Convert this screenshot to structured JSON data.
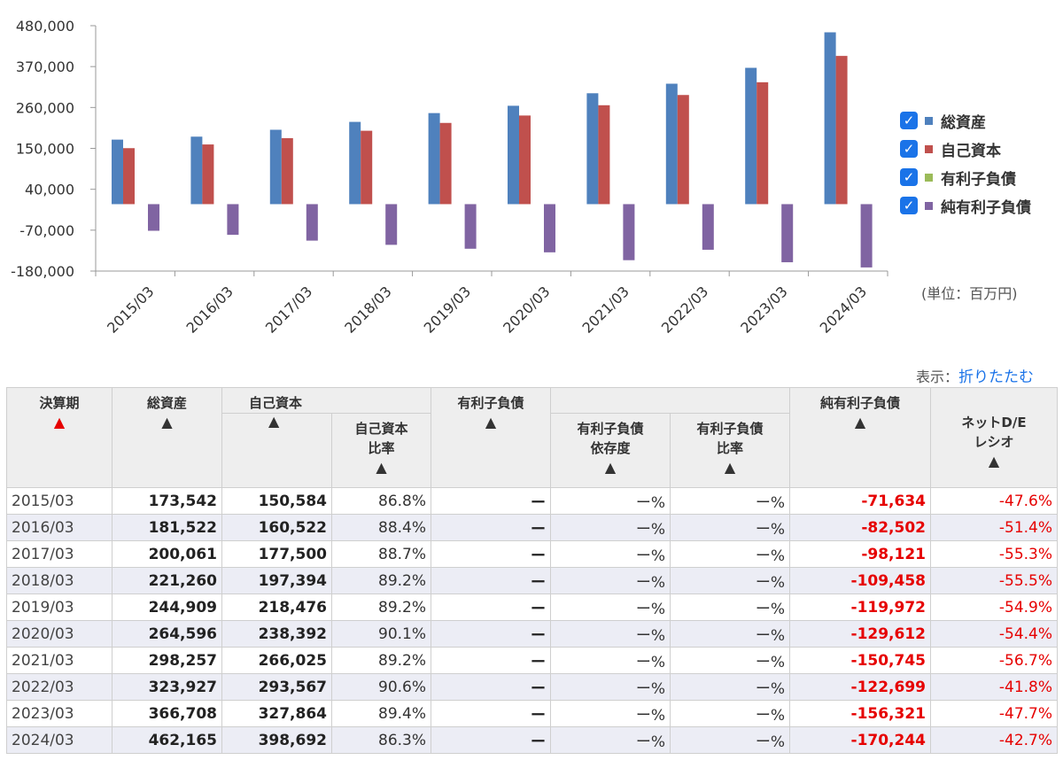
{
  "chart_data": {
    "type": "bar",
    "categories": [
      "2015/03",
      "2016/03",
      "2017/03",
      "2018/03",
      "2019/03",
      "2020/03",
      "2021/03",
      "2022/03",
      "2023/03",
      "2024/03"
    ],
    "series": [
      {
        "name": "総資産",
        "color": "#4f81bd",
        "values": [
          173542,
          181522,
          200061,
          221260,
          244909,
          264596,
          298257,
          323927,
          366708,
          462165
        ]
      },
      {
        "name": "自己資本",
        "color": "#c0504d",
        "values": [
          150584,
          160522,
          177500,
          197394,
          218476,
          238392,
          266025,
          293567,
          327864,
          398692
        ]
      },
      {
        "name": "有利子負債",
        "color": "#9bbb59",
        "values": [
          null,
          null,
          null,
          null,
          null,
          null,
          null,
          null,
          null,
          null
        ]
      },
      {
        "name": "純有利子負債",
        "color": "#8064a2",
        "values": [
          -71634,
          -82502,
          -98121,
          -109458,
          -119972,
          -129612,
          -150745,
          -122699,
          -156321,
          -170244
        ]
      }
    ],
    "yticks": [
      "480,000",
      "370,000",
      "260,000",
      "150,000",
      "40,000",
      "-70,000",
      "-180,000"
    ],
    "ylim": [
      -180000,
      480000
    ],
    "grid": false,
    "legend_position": "right"
  },
  "unit_label": "(単位：百万円)",
  "display_toggle": {
    "label": "表示：",
    "link": "折りたたむ"
  },
  "table": {
    "headers": {
      "period": "決算期",
      "total_assets": "総資産",
      "equity": "自己資本",
      "equity_ratio_1": "自己資本",
      "equity_ratio_2": "比率",
      "debt": "有利子負債",
      "debt_dep_1": "有利子負債",
      "debt_dep_2": "依存度",
      "debt_ratio_1": "有利子負債",
      "debt_ratio_2": "比率",
      "net_debt": "純有利子負債",
      "net_de_1": "ネットD/E",
      "net_de_2": "レシオ",
      "sort_icon": "▲"
    },
    "rows": [
      {
        "period": "2015/03",
        "total_assets": "173,542",
        "equity": "150,584",
        "equity_ratio": "86.8%",
        "debt": "ー",
        "debt_dep": "ー%",
        "debt_ratio": "ー%",
        "net_debt": "-71,634",
        "net_de": "-47.6%"
      },
      {
        "period": "2016/03",
        "total_assets": "181,522",
        "equity": "160,522",
        "equity_ratio": "88.4%",
        "debt": "ー",
        "debt_dep": "ー%",
        "debt_ratio": "ー%",
        "net_debt": "-82,502",
        "net_de": "-51.4%"
      },
      {
        "period": "2017/03",
        "total_assets": "200,061",
        "equity": "177,500",
        "equity_ratio": "88.7%",
        "debt": "ー",
        "debt_dep": "ー%",
        "debt_ratio": "ー%",
        "net_debt": "-98,121",
        "net_de": "-55.3%"
      },
      {
        "period": "2018/03",
        "total_assets": "221,260",
        "equity": "197,394",
        "equity_ratio": "89.2%",
        "debt": "ー",
        "debt_dep": "ー%",
        "debt_ratio": "ー%",
        "net_debt": "-109,458",
        "net_de": "-55.5%"
      },
      {
        "period": "2019/03",
        "total_assets": "244,909",
        "equity": "218,476",
        "equity_ratio": "89.2%",
        "debt": "ー",
        "debt_dep": "ー%",
        "debt_ratio": "ー%",
        "net_debt": "-119,972",
        "net_de": "-54.9%"
      },
      {
        "period": "2020/03",
        "total_assets": "264,596",
        "equity": "238,392",
        "equity_ratio": "90.1%",
        "debt": "ー",
        "debt_dep": "ー%",
        "debt_ratio": "ー%",
        "net_debt": "-129,612",
        "net_de": "-54.4%"
      },
      {
        "period": "2021/03",
        "total_assets": "298,257",
        "equity": "266,025",
        "equity_ratio": "89.2%",
        "debt": "ー",
        "debt_dep": "ー%",
        "debt_ratio": "ー%",
        "net_debt": "-150,745",
        "net_de": "-56.7%"
      },
      {
        "period": "2022/03",
        "total_assets": "323,927",
        "equity": "293,567",
        "equity_ratio": "90.6%",
        "debt": "ー",
        "debt_dep": "ー%",
        "debt_ratio": "ー%",
        "net_debt": "-122,699",
        "net_de": "-41.8%"
      },
      {
        "period": "2023/03",
        "total_assets": "366,708",
        "equity": "327,864",
        "equity_ratio": "89.4%",
        "debt": "ー",
        "debt_dep": "ー%",
        "debt_ratio": "ー%",
        "net_debt": "-156,321",
        "net_de": "-47.7%"
      },
      {
        "period": "2024/03",
        "total_assets": "462,165",
        "equity": "398,692",
        "equity_ratio": "86.3%",
        "debt": "ー",
        "debt_dep": "ー%",
        "debt_ratio": "ー%",
        "net_debt": "-170,244",
        "net_de": "-42.7%"
      }
    ]
  }
}
